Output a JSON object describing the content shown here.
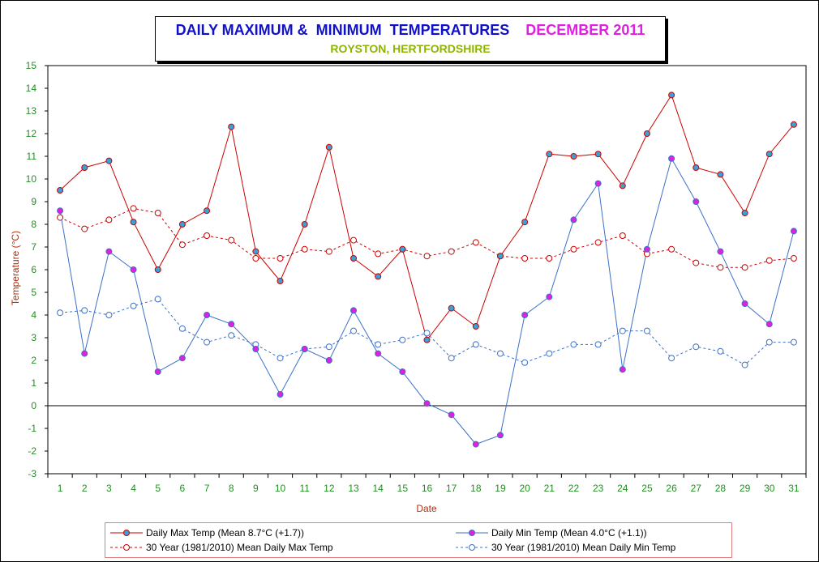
{
  "chart_data": {
    "type": "line",
    "title": "DAILY MAXIMUM &  MINIMUM  TEMPERATURES",
    "title_month": "DECEMBER 2011",
    "subtitle": "ROYSTON, HERTFORDSHIRE",
    "xlabel": "Date",
    "ylabel": "Temperature (°C)",
    "x": [
      1,
      2,
      3,
      4,
      5,
      6,
      7,
      8,
      9,
      10,
      11,
      12,
      13,
      14,
      15,
      16,
      17,
      18,
      19,
      20,
      21,
      22,
      23,
      24,
      25,
      26,
      27,
      28,
      29,
      30,
      31
    ],
    "ylim": [
      -3,
      15
    ],
    "yticks": [
      -3,
      -2,
      -1,
      0,
      1,
      2,
      3,
      4,
      5,
      6,
      7,
      8,
      9,
      10,
      11,
      12,
      13,
      14,
      15
    ],
    "grid": true,
    "legend_position": "bottom",
    "series": [
      {
        "name": "Daily Max Temp (Mean 8.7°C (+1.7))",
        "color": "#cc0000",
        "marker_fill": "#3aa0d8",
        "style": "solid",
        "values": [
          9.5,
          10.5,
          10.8,
          8.1,
          6.0,
          8.0,
          8.6,
          12.3,
          6.8,
          5.5,
          8.0,
          11.4,
          6.5,
          5.7,
          6.9,
          2.9,
          4.3,
          3.5,
          6.6,
          8.1,
          11.1,
          11.0,
          11.1,
          9.7,
          12.0,
          13.7,
          10.5,
          10.2,
          8.5,
          11.1,
          12.4
        ]
      },
      {
        "name": "Daily Min Temp (Mean 4.0°C (+1.1))",
        "color": "#3a70c8",
        "marker_fill": "#e020e0",
        "style": "solid",
        "values": [
          8.6,
          2.3,
          6.8,
          6.0,
          1.5,
          2.1,
          4.0,
          3.6,
          2.5,
          0.5,
          2.5,
          2.0,
          4.2,
          2.3,
          1.5,
          0.1,
          -0.4,
          -1.7,
          -1.3,
          4.0,
          4.8,
          8.2,
          9.8,
          1.6,
          6.9,
          10.9,
          9.0,
          6.8,
          4.5,
          3.6,
          7.7
        ]
      },
      {
        "name": "30 Year (1981/2010) Mean Daily Max Temp",
        "color": "#cc0000",
        "marker_fill": "#ffffff",
        "style": "dashed",
        "values": [
          8.3,
          7.8,
          8.2,
          8.7,
          8.5,
          7.1,
          7.5,
          7.3,
          6.5,
          6.5,
          6.9,
          6.8,
          7.3,
          6.7,
          6.9,
          6.6,
          6.8,
          7.2,
          6.6,
          6.5,
          6.5,
          6.9,
          7.2,
          7.5,
          6.7,
          6.9,
          6.3,
          6.1,
          6.1,
          6.4,
          6.5
        ]
      },
      {
        "name": "30 Year (1981/2010) Mean Daily Min Temp",
        "color": "#3a70c8",
        "marker_fill": "#ffffff",
        "style": "dashed",
        "values": [
          4.1,
          4.2,
          4.0,
          4.4,
          4.7,
          3.4,
          2.8,
          3.1,
          2.7,
          2.1,
          2.5,
          2.6,
          3.3,
          2.7,
          2.9,
          3.2,
          2.1,
          2.7,
          2.3,
          1.9,
          2.3,
          2.7,
          2.7,
          3.3,
          3.3,
          2.1,
          2.6,
          2.4,
          1.8,
          2.8,
          2.8
        ]
      }
    ],
    "colors": {
      "axis_tick_labels": "#209020",
      "axis_title": "#b03010",
      "title": "#1010c8",
      "title_month": "#e020e0",
      "subtitle": "#8cb400"
    }
  }
}
